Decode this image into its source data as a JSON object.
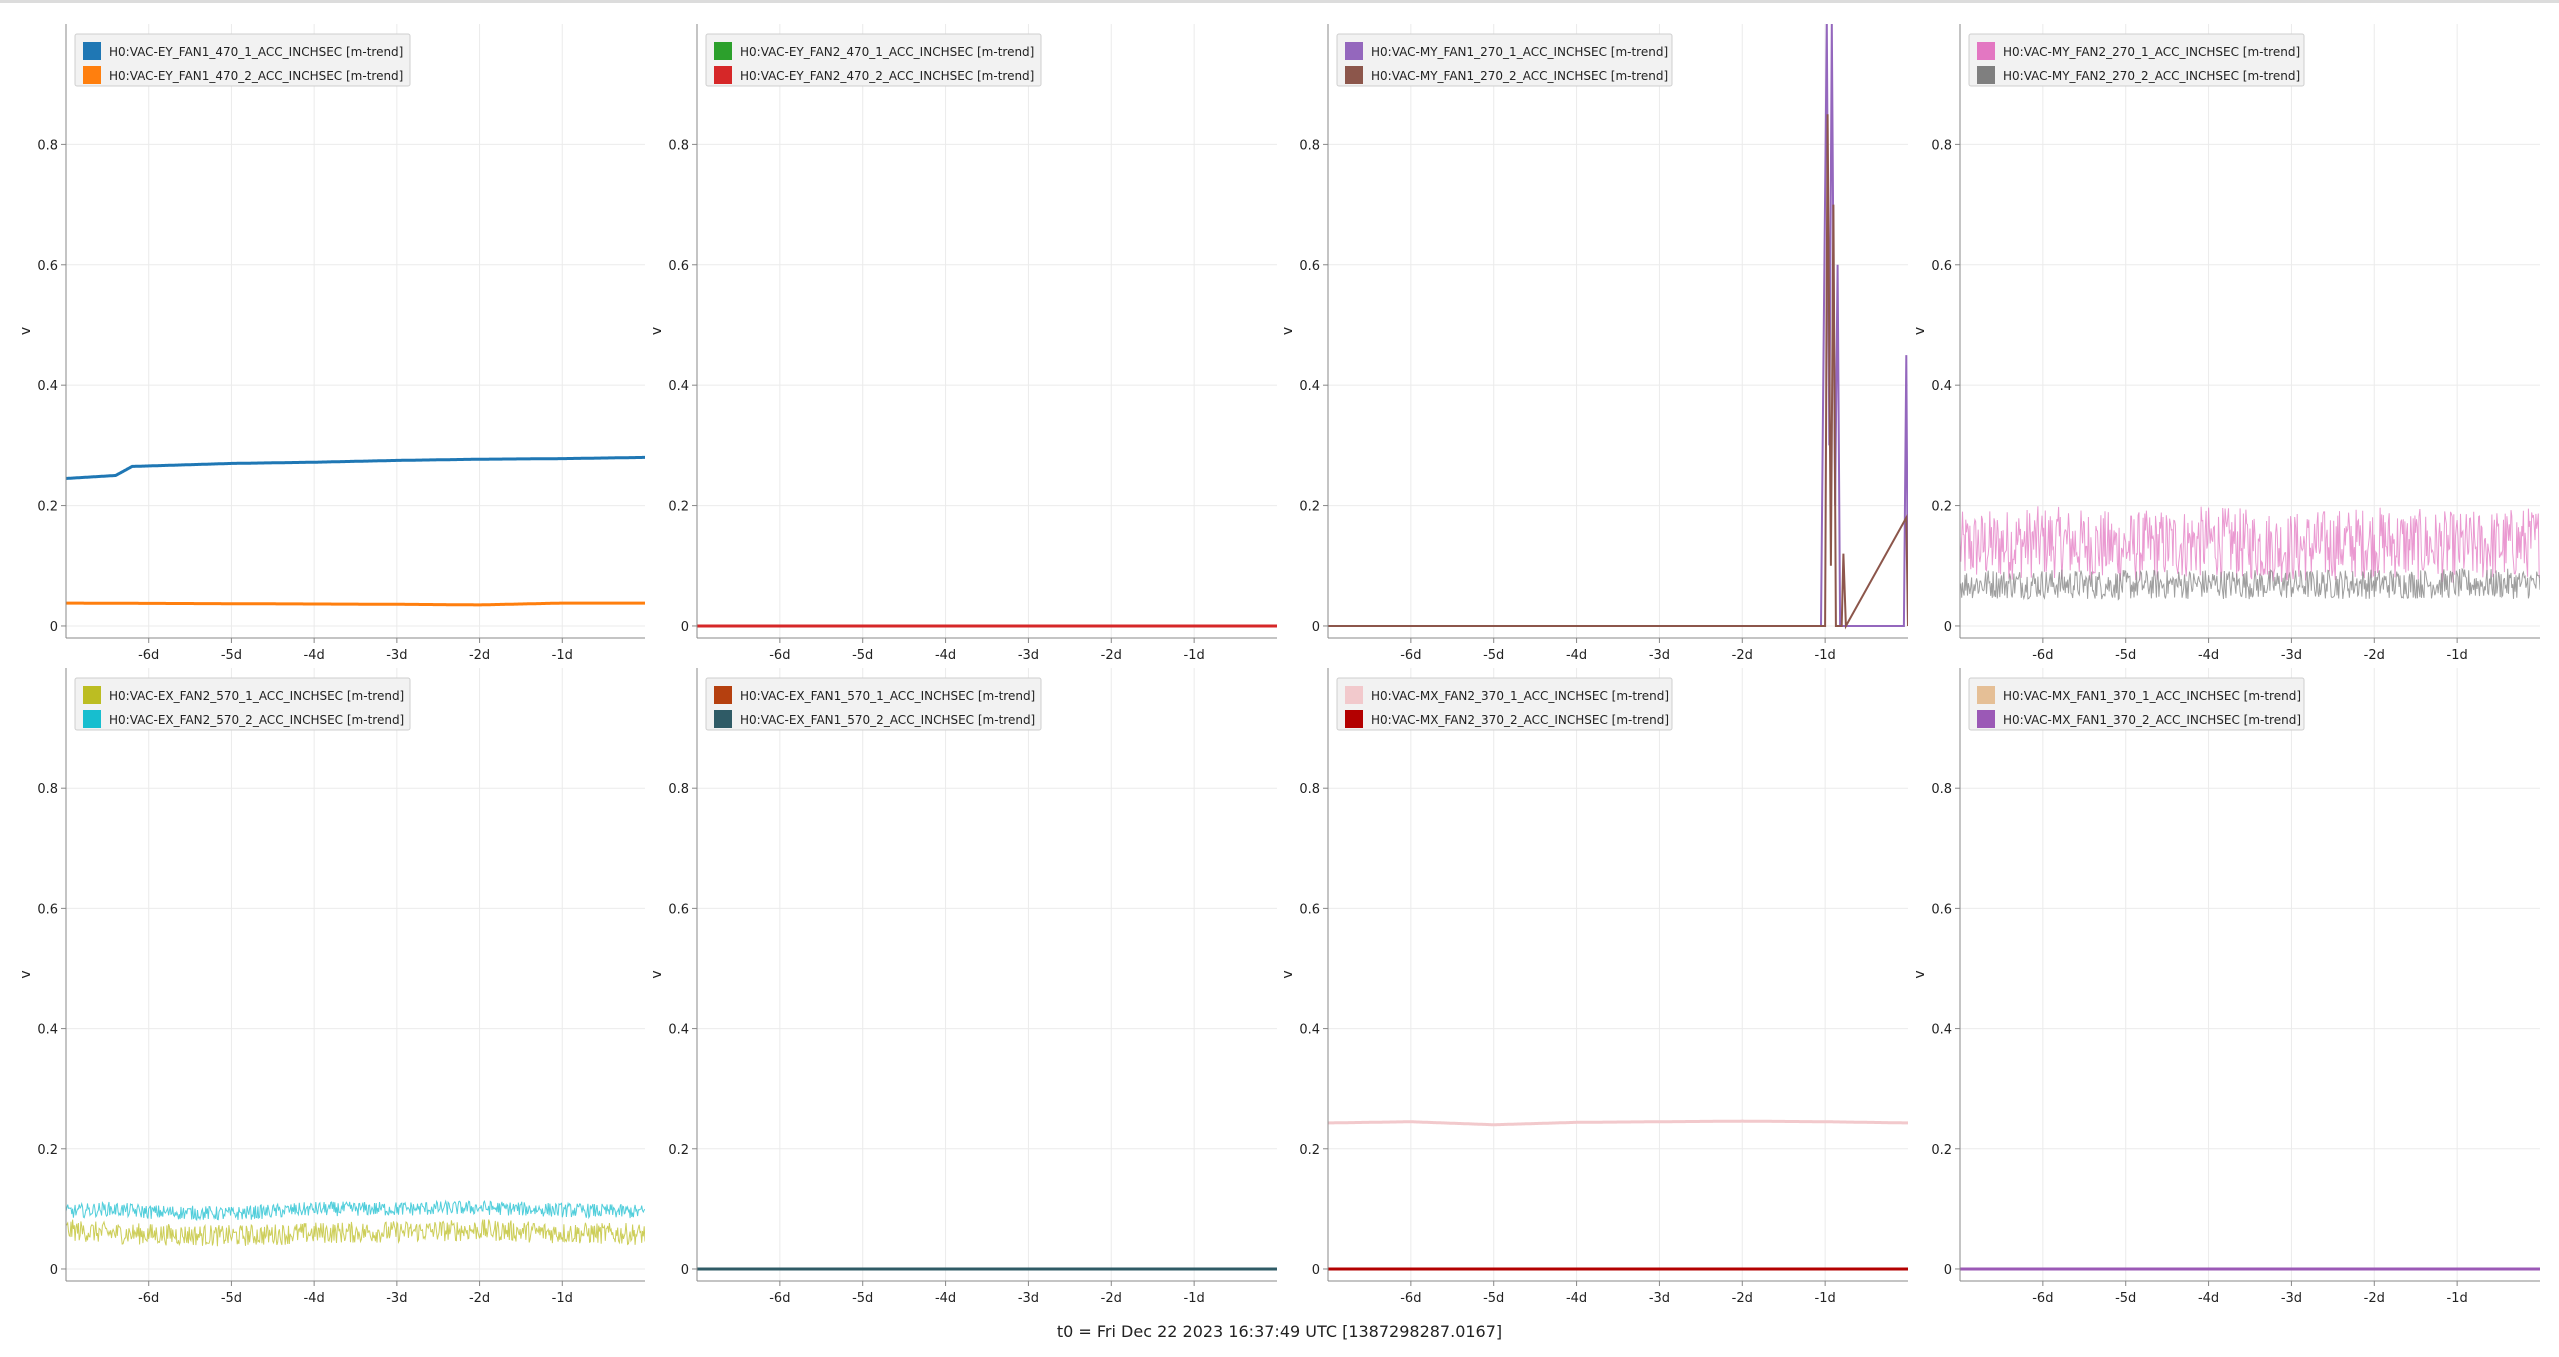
{
  "footer": {
    "t0": "t0 = Fri Dec 22 2023 16:37:49 UTC [1387298287.0167]"
  },
  "colors": {
    "axis": "#888888",
    "grid": "#ebebeb",
    "tick_text": "#222222"
  },
  "chart_data": [
    {
      "type": "line",
      "ylabel": "v",
      "xlim": [
        -7,
        0
      ],
      "ylim": [
        -0.02,
        1.0
      ],
      "xticks": [
        -6,
        -5,
        -4,
        -3,
        -2,
        -1
      ],
      "xticklabels": [
        "-6d",
        "-5d",
        "-4d",
        "-3d",
        "-2d",
        "-1d"
      ],
      "yticks": [
        0,
        0.2,
        0.4,
        0.6,
        0.8
      ],
      "yticklabels": [
        "0",
        "0.2",
        "0.4",
        "0.6",
        "0.8"
      ],
      "legend_position": "top-left",
      "series": [
        {
          "name": "H0:VAC-EY_FAN1_470_1_ACC_INCHSEC [m-trend]",
          "color": "#1f77b4",
          "x": [
            -7,
            -6.4,
            -6.2,
            -5,
            -4,
            -3,
            -2,
            -1,
            0
          ],
          "y": [
            0.245,
            0.25,
            0.265,
            0.27,
            0.272,
            0.275,
            0.277,
            0.278,
            0.28
          ]
        },
        {
          "name": "H0:VAC-EY_FAN1_470_2_ACC_INCHSEC [m-trend]",
          "color": "#ff7f0e",
          "x": [
            -7,
            -5,
            -3,
            -2,
            -1,
            0
          ],
          "y": [
            0.038,
            0.037,
            0.036,
            0.035,
            0.038,
            0.038
          ]
        }
      ]
    },
    {
      "type": "line",
      "ylabel": "v",
      "xlim": [
        -7,
        0
      ],
      "ylim": [
        -0.02,
        1.0
      ],
      "xticks": [
        -6,
        -5,
        -4,
        -3,
        -2,
        -1
      ],
      "xticklabels": [
        "-6d",
        "-5d",
        "-4d",
        "-3d",
        "-2d",
        "-1d"
      ],
      "yticks": [
        0,
        0.2,
        0.4,
        0.6,
        0.8
      ],
      "yticklabels": [
        "0",
        "0.2",
        "0.4",
        "0.6",
        "0.8"
      ],
      "legend_position": "top-left",
      "series": [
        {
          "name": "H0:VAC-EY_FAN2_470_1_ACC_INCHSEC [m-trend]",
          "color": "#2ca02c",
          "x": [
            -7,
            0
          ],
          "y": [
            0.0,
            0.0
          ]
        },
        {
          "name": "H0:VAC-EY_FAN2_470_2_ACC_INCHSEC [m-trend]",
          "color": "#d62728",
          "x": [
            -7,
            0
          ],
          "y": [
            0.0,
            0.0
          ]
        }
      ]
    },
    {
      "type": "line",
      "ylabel": "v",
      "xlim": [
        -7,
        0
      ],
      "ylim": [
        -0.02,
        1.0
      ],
      "xticks": [
        -6,
        -5,
        -4,
        -3,
        -2,
        -1
      ],
      "xticklabels": [
        "-6d",
        "-5d",
        "-4d",
        "-3d",
        "-2d",
        "-1d"
      ],
      "yticks": [
        0,
        0.2,
        0.4,
        0.6,
        0.8
      ],
      "yticklabels": [
        "0",
        "0.2",
        "0.4",
        "0.6",
        "0.8"
      ],
      "legend_position": "top-left",
      "series": [
        {
          "name": "H0:VAC-MY_FAN1_270_1_ACC_INCHSEC [m-trend]",
          "color": "#9467bd",
          "x": [
            -7,
            -1.05,
            -1.02,
            -0.98,
            -0.95,
            -0.92,
            -0.88,
            -0.85,
            -0.82,
            -0.75,
            -0.05,
            -0.02,
            0
          ],
          "y": [
            0.0,
            0.0,
            0.45,
            1.0,
            0.3,
            1.0,
            0.2,
            0.6,
            0.0,
            0.0,
            0.0,
            0.45,
            0.0
          ]
        },
        {
          "name": "H0:VAC-MY_FAN1_270_2_ACC_INCHSEC [m-trend]",
          "color": "#8c564b",
          "x": [
            -7,
            -1.0,
            -0.97,
            -0.93,
            -0.9,
            -0.87,
            -0.8,
            -0.78,
            -0.75,
            -0.02,
            0
          ],
          "y": [
            0.0,
            0.0,
            0.85,
            0.1,
            0.7,
            0.0,
            0.0,
            0.12,
            0.0,
            0.18,
            0.0
          ]
        }
      ]
    },
    {
      "type": "line",
      "ylabel": "v",
      "xlim": [
        -7,
        0
      ],
      "ylim": [
        -0.02,
        1.0
      ],
      "xticks": [
        -6,
        -5,
        -4,
        -3,
        -2,
        -1
      ],
      "xticklabels": [
        "-6d",
        "-5d",
        "-4d",
        "-3d",
        "-2d",
        "-1d"
      ],
      "yticks": [
        0,
        0.2,
        0.4,
        0.6,
        0.8
      ],
      "yticklabels": [
        "0",
        "0.2",
        "0.4",
        "0.6",
        "0.8"
      ],
      "legend_position": "top-left",
      "series": [
        {
          "name": "H0:VAC-MY_FAN2_270_1_ACC_INCHSEC [m-trend]",
          "color": "#e377c2",
          "x": [
            -7,
            -6,
            -5,
            -4,
            -3,
            -2,
            -1,
            0
          ],
          "y": [
            0.13,
            0.14,
            0.13,
            0.14,
            0.13,
            0.14,
            0.13,
            0.14
          ]
        },
        {
          "name": "H0:VAC-MY_FAN2_270_2_ACC_INCHSEC [m-trend]",
          "color": "#7f7f7f",
          "x": [
            -7,
            -6,
            -5,
            -4,
            -3,
            -2,
            -1,
            0
          ],
          "y": [
            0.07,
            0.07,
            0.068,
            0.07,
            0.069,
            0.07,
            0.07,
            0.07
          ]
        }
      ]
    },
    {
      "type": "line",
      "ylabel": "v",
      "xlim": [
        -7,
        0
      ],
      "ylim": [
        -0.02,
        1.0
      ],
      "xticks": [
        -6,
        -5,
        -4,
        -3,
        -2,
        -1
      ],
      "xticklabels": [
        "-6d",
        "-5d",
        "-4d",
        "-3d",
        "-2d",
        "-1d"
      ],
      "yticks": [
        0,
        0.2,
        0.4,
        0.6,
        0.8
      ],
      "yticklabels": [
        "0",
        "0.2",
        "0.4",
        "0.6",
        "0.8"
      ],
      "legend_position": "top-left",
      "series": [
        {
          "name": "H0:VAC-EX_FAN2_570_1_ACC_INCHSEC [m-trend]",
          "color": "#bcbd22",
          "x": [
            -7,
            -6.5,
            -6,
            -5,
            -4,
            -3,
            -2,
            -1,
            0
          ],
          "y": [
            0.065,
            0.06,
            0.058,
            0.055,
            0.06,
            0.062,
            0.065,
            0.06,
            0.058
          ]
        },
        {
          "name": "H0:VAC-EX_FAN2_570_2_ACC_INCHSEC [m-trend]",
          "color": "#17becf",
          "x": [
            -7,
            -6.5,
            -6,
            -5,
            -4,
            -3,
            -2,
            -1,
            0
          ],
          "y": [
            0.095,
            0.1,
            0.095,
            0.092,
            0.1,
            0.1,
            0.102,
            0.098,
            0.095
          ]
        }
      ]
    },
    {
      "type": "line",
      "ylabel": "v",
      "xlim": [
        -7,
        0
      ],
      "ylim": [
        -0.02,
        1.0
      ],
      "xticks": [
        -6,
        -5,
        -4,
        -3,
        -2,
        -1
      ],
      "xticklabels": [
        "-6d",
        "-5d",
        "-4d",
        "-3d",
        "-2d",
        "-1d"
      ],
      "yticks": [
        0,
        0.2,
        0.4,
        0.6,
        0.8
      ],
      "yticklabels": [
        "0",
        "0.2",
        "0.4",
        "0.6",
        "0.8"
      ],
      "legend_position": "top-left",
      "series": [
        {
          "name": "H0:VAC-EX_FAN1_570_1_ACC_INCHSEC [m-trend]",
          "color": "#b5400f",
          "x": [
            -7,
            0
          ],
          "y": [
            0.0,
            0.0
          ]
        },
        {
          "name": "H0:VAC-EX_FAN1_570_2_ACC_INCHSEC [m-trend]",
          "color": "#2f5b66",
          "x": [
            -7,
            0
          ],
          "y": [
            0.0,
            0.0
          ]
        }
      ]
    },
    {
      "type": "line",
      "ylabel": "v",
      "xlim": [
        -7,
        0
      ],
      "ylim": [
        -0.02,
        1.0
      ],
      "xticks": [
        -6,
        -5,
        -4,
        -3,
        -2,
        -1
      ],
      "xticklabels": [
        "-6d",
        "-5d",
        "-4d",
        "-3d",
        "-2d",
        "-1d"
      ],
      "yticks": [
        0,
        0.2,
        0.4,
        0.6,
        0.8
      ],
      "yticklabels": [
        "0",
        "0.2",
        "0.4",
        "0.6",
        "0.8"
      ],
      "legend_position": "top-left",
      "series": [
        {
          "name": "H0:VAC-MX_FAN2_370_1_ACC_INCHSEC [m-trend]",
          "color": "#f2c9cc",
          "x": [
            -7,
            -6,
            -5,
            -4,
            -3,
            -2,
            -1,
            0
          ],
          "y": [
            0.243,
            0.245,
            0.24,
            0.244,
            0.245,
            0.246,
            0.245,
            0.243
          ]
        },
        {
          "name": "H0:VAC-MX_FAN2_370_2_ACC_INCHSEC [m-trend]",
          "color": "#b30000",
          "x": [
            -7,
            0
          ],
          "y": [
            0.0,
            0.0
          ]
        }
      ]
    },
    {
      "type": "line",
      "ylabel": "v",
      "xlim": [
        -7,
        0
      ],
      "ylim": [
        -0.02,
        1.0
      ],
      "xticks": [
        -6,
        -5,
        -4,
        -3,
        -2,
        -1
      ],
      "xticklabels": [
        "-6d",
        "-5d",
        "-4d",
        "-3d",
        "-2d",
        "-1d"
      ],
      "yticks": [
        0,
        0.2,
        0.4,
        0.6,
        0.8
      ],
      "yticklabels": [
        "0",
        "0.2",
        "0.4",
        "0.6",
        "0.8"
      ],
      "legend_position": "top-left",
      "series": [
        {
          "name": "H0:VAC-MX_FAN1_370_1_ACC_INCHSEC [m-trend]",
          "color": "#e5bf96",
          "x": [
            -7,
            0
          ],
          "y": [
            0.0,
            0.0
          ]
        },
        {
          "name": "H0:VAC-MX_FAN1_370_2_ACC_INCHSEC [m-trend]",
          "color": "#9b59b6",
          "x": [
            -7,
            0
          ],
          "y": [
            0.0,
            0.0
          ]
        }
      ]
    }
  ]
}
